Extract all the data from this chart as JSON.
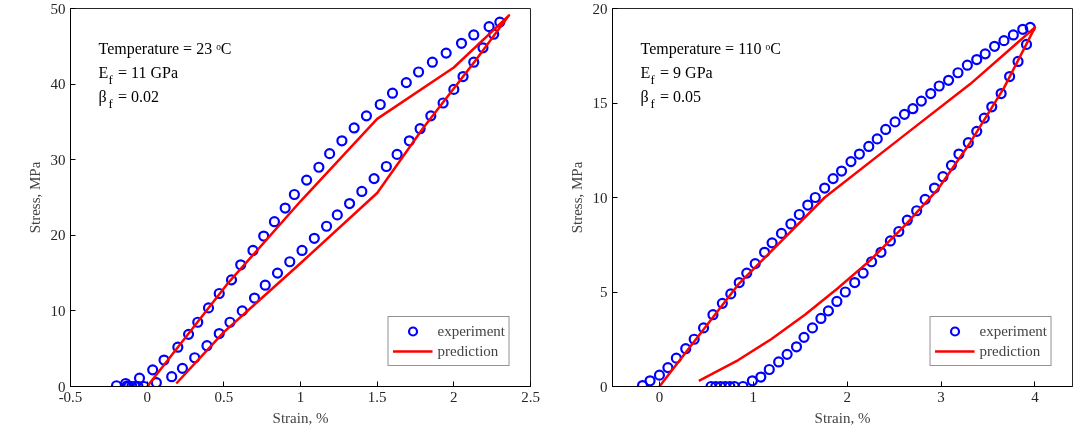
{
  "chart_data": [
    {
      "type": "scatter",
      "xlabel": "Strain, %",
      "ylabel": "Stress, MPa",
      "xlim": [
        -0.5,
        2.5
      ],
      "ylim": [
        0,
        50
      ],
      "xticks": [
        -0.5,
        0,
        0.5,
        1,
        1.5,
        2,
        2.5
      ],
      "yticks": [
        0,
        10,
        20,
        30,
        40,
        50
      ],
      "grid": false,
      "legend": "bottom right",
      "annotations": [
        "Temperature = 23 ᵒC",
        "E$_{f}$ = 11 GPa",
        "β$_{f}$ = 0.02"
      ],
      "series": [
        {
          "name": "experiment",
          "marker": "circle",
          "color": "#0000ff",
          "x": [
            -0.2,
            -0.14,
            -0.13,
            -0.12,
            -0.1,
            -0.08,
            -0.06,
            -0.02,
            -0.05,
            0.036,
            0.11,
            0.2,
            0.27,
            0.33,
            0.4,
            0.47,
            0.55,
            0.61,
            0.69,
            0.76,
            0.83,
            0.9,
            0.96,
            1.04,
            1.12,
            1.19,
            1.27,
            1.35,
            1.43,
            1.52,
            1.6,
            1.69,
            1.77,
            1.86,
            1.95,
            2.05,
            2.13,
            2.23,
            2.3,
            2.26,
            2.19,
            2.13,
            2.06,
            2.0,
            1.93,
            1.85,
            1.78,
            1.71,
            1.63,
            1.56,
            1.48,
            1.4,
            1.32,
            1.24,
            1.17,
            1.09,
            1.01,
            0.93,
            0.85,
            0.77,
            0.7,
            0.62,
            0.54,
            0.47,
            0.39,
            0.31,
            0.23,
            0.16,
            0.06
          ],
          "values": [
            0.1,
            0.4,
            0.1,
            0,
            0,
            0,
            0,
            0,
            1.1,
            2.2,
            3.5,
            5.2,
            6.9,
            8.5,
            10.4,
            12.3,
            14.1,
            16.1,
            18,
            19.9,
            21.8,
            23.6,
            25.4,
            27.3,
            29,
            30.8,
            32.5,
            34.2,
            35.8,
            37.3,
            38.8,
            40.2,
            41.6,
            42.9,
            44.1,
            45.4,
            46.5,
            47.6,
            48.2,
            46.6,
            44.8,
            42.9,
            41,
            39.3,
            37.5,
            35.8,
            34.1,
            32.5,
            30.7,
            29.1,
            27.5,
            25.8,
            24.2,
            22.7,
            21.2,
            19.6,
            18,
            16.5,
            15,
            13.4,
            11.7,
            10,
            8.5,
            7,
            5.4,
            3.8,
            2.4,
            1.3,
            0.5
          ]
        },
        {
          "name": "prediction",
          "type": "line",
          "line_style": "solid",
          "color": "#ff0000",
          "x": [
            0,
            0.52,
            1.0,
            1.5,
            2.0,
            2.36,
            2.14,
            1.8,
            1.5,
            1.0,
            0.5,
            0.19
          ],
          "values": [
            0,
            13.5,
            24.5,
            35.4,
            42.2,
            49.1,
            43.1,
            34.2,
            25.6,
            16.3,
            7.2,
            0.4
          ]
        }
      ]
    },
    {
      "type": "scatter",
      "xlabel": "Strain, %",
      "ylabel": "Stress, MPa",
      "xlim": [
        -0.5,
        4.4
      ],
      "ylim": [
        0,
        20
      ],
      "xticks": [
        0,
        1,
        2,
        3,
        4
      ],
      "yticks": [
        0,
        5,
        10,
        15,
        20
      ],
      "grid": false,
      "legend": "bottom right",
      "annotations": [
        "Temperature = 110 ᵒC",
        "E$_{f}$ = 9 GPa",
        "β$_{f}$ = 0.05"
      ],
      "series": [
        {
          "name": "experiment",
          "marker": "circle",
          "color": "#0000ff",
          "x": [
            -0.18,
            -0.1,
            0,
            0.09,
            0.18,
            0.28,
            0.37,
            0.47,
            0.57,
            0.67,
            0.76,
            0.85,
            0.93,
            1.02,
            1.12,
            1.2,
            1.3,
            1.4,
            1.49,
            1.58,
            1.66,
            1.76,
            1.85,
            1.94,
            2.04,
            2.13,
            2.23,
            2.32,
            2.41,
            2.51,
            2.61,
            2.7,
            2.79,
            2.89,
            2.98,
            3.08,
            3.18,
            3.28,
            3.38,
            3.47,
            3.57,
            3.67,
            3.77,
            3.87,
            3.95,
            3.91,
            3.82,
            3.73,
            3.64,
            3.54,
            3.46,
            3.38,
            3.29,
            3.19,
            3.11,
            3.02,
            2.93,
            2.83,
            2.74,
            2.64,
            2.55,
            2.46,
            2.36,
            2.26,
            2.17,
            2.08,
            1.98,
            1.89,
            1.8,
            1.72,
            1.63,
            1.54,
            1.46,
            1.36,
            1.27,
            1.17,
            1.08,
            0.99,
            0.89,
            0.8,
            0.75,
            0.7,
            0.65,
            0.6,
            0.55
          ],
          "values": [
            0.05,
            0.3,
            0.6,
            1.0,
            1.5,
            2.0,
            2.5,
            3.1,
            3.8,
            4.4,
            4.9,
            5.5,
            6.0,
            6.5,
            7.1,
            7.6,
            8.1,
            8.6,
            9.1,
            9.6,
            10.0,
            10.5,
            11.0,
            11.4,
            11.9,
            12.3,
            12.7,
            13.1,
            13.6,
            14.0,
            14.4,
            14.7,
            15.1,
            15.5,
            15.9,
            16.2,
            16.6,
            17.0,
            17.3,
            17.6,
            18.0,
            18.3,
            18.6,
            18.9,
            19.0,
            18.1,
            17.2,
            16.4,
            15.5,
            14.8,
            14.2,
            13.5,
            12.9,
            12.3,
            11.7,
            11.1,
            10.5,
            9.9,
            9.3,
            8.8,
            8.2,
            7.7,
            7.1,
            6.6,
            6.0,
            5.5,
            5.0,
            4.5,
            4.0,
            3.6,
            3.1,
            2.6,
            2.1,
            1.7,
            1.3,
            0.9,
            0.5,
            0.3,
            0.0,
            0,
            0,
            0,
            0,
            0,
            0
          ]
        },
        {
          "name": "prediction",
          "type": "line",
          "line_style": "solid",
          "color": "#ff0000",
          "x": [
            0,
            0.84,
            1.76,
            2.61,
            3.31,
            4.0,
            3.67,
            3.31,
            2.96,
            2.61,
            2.25,
            1.9,
            1.55,
            1.19,
            0.84,
            0.42
          ],
          "values": [
            0,
            5.4,
            10,
            13.3,
            16,
            19,
            15.8,
            12.9,
            10.4,
            8.5,
            6.7,
            5.2,
            3.8,
            2.5,
            1.4,
            0.3
          ]
        }
      ]
    }
  ]
}
